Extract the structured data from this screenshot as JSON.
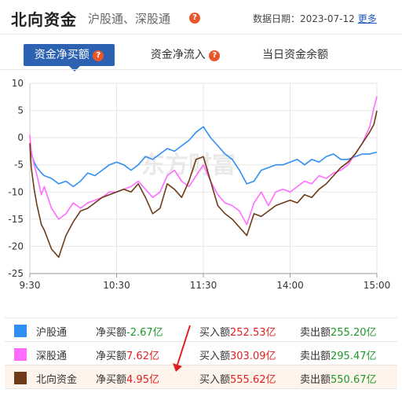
{
  "header": {
    "title": "北向资金",
    "subtitle": "沪股通、深股通",
    "date_label": "数据日期：",
    "date": "2023-07-12",
    "more": "更多",
    "help": "?"
  },
  "tabs": [
    {
      "label": "资金净买额",
      "help": "?",
      "active": true
    },
    {
      "label": "资金净流入",
      "help": "?",
      "active": false
    },
    {
      "label": "当日资金余额",
      "help": "",
      "active": false
    }
  ],
  "watermark": "东方财富",
  "colors": {
    "sh": "#2f8ff3",
    "sz": "#ff6cff",
    "north": "#6e3b16",
    "accent": "#2c62b1",
    "up": "#e02020",
    "down": "#1b9a2a"
  },
  "chart_data": {
    "type": "line",
    "title": "",
    "xlabel": "",
    "ylabel": "",
    "ylim": [
      -25,
      10
    ],
    "yticks": [
      10,
      5,
      0,
      -5,
      -10,
      -15,
      -20,
      -25
    ],
    "xticks": [
      "9:30",
      "10:30",
      "11:30",
      "14:00",
      "15:00"
    ],
    "x_minutes": [
      0,
      1,
      3,
      5,
      8,
      10,
      15,
      20,
      25,
      30,
      35,
      40,
      45,
      50,
      55,
      60,
      65,
      70,
      75,
      80,
      85,
      90,
      95,
      100,
      105,
      110,
      115,
      120,
      125,
      130,
      135,
      140,
      145,
      150,
      155,
      160,
      165,
      170,
      175,
      180,
      185,
      190,
      195,
      200,
      205,
      210,
      215,
      220,
      225,
      230,
      235,
      238,
      240
    ],
    "series": [
      {
        "name": "沪股通",
        "color": "#2f8ff3",
        "values": [
          -1.5,
          -3.0,
          -4.5,
          -5.5,
          -6.5,
          -7.0,
          -7.5,
          -8.5,
          -8.0,
          -9.0,
          -8.0,
          -6.5,
          -7.0,
          -6.0,
          -5.0,
          -4.5,
          -5.0,
          -6.0,
          -5.0,
          -3.5,
          -4.0,
          -3.0,
          -2.0,
          -2.5,
          -1.5,
          -0.5,
          1.0,
          2.0,
          0.0,
          -1.5,
          -3.0,
          -4.0,
          -6.0,
          -8.5,
          -8.0,
          -6.0,
          -5.5,
          -5.0,
          -5.0,
          -4.5,
          -4.0,
          -5.0,
          -4.0,
          -4.5,
          -3.5,
          -3.0,
          -4.0,
          -4.0,
          -3.5,
          -3.0,
          -3.0,
          -2.8,
          -2.67
        ]
      },
      {
        "name": "深股通",
        "color": "#ff6cff",
        "values": [
          0.5,
          -2.5,
          -5.0,
          -7.0,
          -10.5,
          -9.0,
          -13.0,
          -15.0,
          -14.0,
          -12.0,
          -13.0,
          -12.0,
          -11.5,
          -11.0,
          -10.0,
          -10.0,
          -9.5,
          -9.0,
          -8.0,
          -9.5,
          -11.0,
          -10.0,
          -7.0,
          -6.0,
          -8.0,
          -9.0,
          -7.0,
          -5.0,
          -8.0,
          -10.5,
          -12.0,
          -12.5,
          -13.5,
          -16.0,
          -12.0,
          -10.0,
          -12.5,
          -10.0,
          -9.5,
          -10.0,
          -9.0,
          -8.0,
          -8.5,
          -7.0,
          -7.5,
          -6.5,
          -6.0,
          -5.0,
          -3.0,
          -1.0,
          2.0,
          5.5,
          7.62
        ]
      },
      {
        "name": "北向资金",
        "color": "#6e3b16",
        "values": [
          -1.0,
          -5.5,
          -9.5,
          -12.5,
          -16.0,
          -17.0,
          -20.5,
          -22.0,
          -18.0,
          -15.5,
          -13.5,
          -13.0,
          -12.0,
          -11.0,
          -10.5,
          -10.0,
          -9.5,
          -10.0,
          -8.5,
          -11.0,
          -14.0,
          -13.0,
          -8.5,
          -9.5,
          -11.0,
          -8.0,
          -4.0,
          -3.5,
          -8.0,
          -12.5,
          -14.0,
          -15.0,
          -16.5,
          -18.0,
          -14.0,
          -14.5,
          -13.5,
          -12.5,
          -12.0,
          -11.5,
          -12.0,
          -10.5,
          -11.0,
          -9.5,
          -8.5,
          -7.0,
          -5.5,
          -4.5,
          -3.0,
          -1.0,
          1.0,
          2.5,
          4.95
        ]
      }
    ]
  },
  "legend": [
    {
      "name": "沪股通",
      "color": "#2f8ff3",
      "net_label": "净买额",
      "net": "-2.67亿",
      "net_dir": "down",
      "buy_label": "买入额",
      "buy": "252.53亿",
      "sell_label": "卖出额",
      "sell": "255.20亿",
      "highlight": false
    },
    {
      "name": "深股通",
      "color": "#ff6cff",
      "net_label": "净买额",
      "net": "7.62亿",
      "net_dir": "up",
      "buy_label": "买入额",
      "buy": "303.09亿",
      "sell_label": "卖出额",
      "sell": "295.47亿",
      "highlight": false
    },
    {
      "name": "北向资金",
      "color": "#6e3b16",
      "net_label": "净买额",
      "net": "4.95亿",
      "net_dir": "up",
      "buy_label": "买入额",
      "buy": "555.62亿",
      "sell_label": "卖出额",
      "sell": "550.67亿",
      "highlight": true
    }
  ]
}
